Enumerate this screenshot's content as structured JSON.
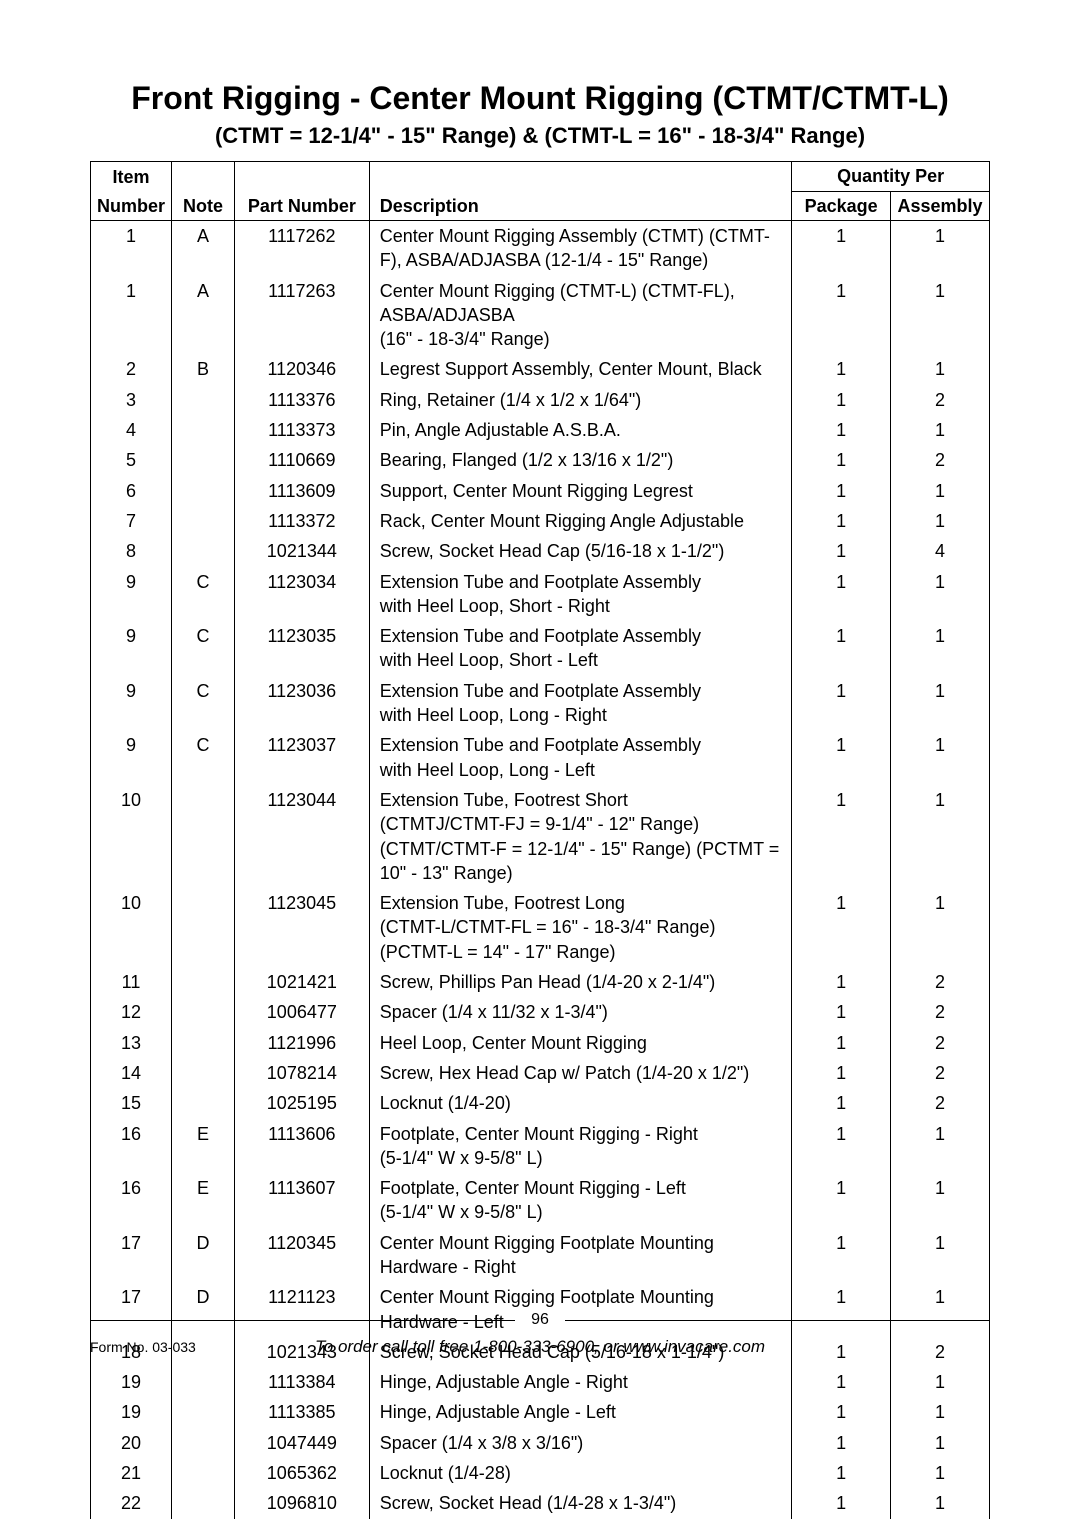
{
  "title": "Front Rigging - Center Mount Rigging (CTMT/CTMT-L)",
  "subtitle": "(CTMT = 12-1/4\" - 15\" Range) & (CTMT-L = 16\" - 18-3/4\" Range)",
  "columns": {
    "item_top": "Item",
    "item": "Number",
    "note": "Note",
    "part": "Part Number",
    "desc": "Description",
    "qty_top": "Quantity Per",
    "pkg": "Package",
    "asm": "Assembly"
  },
  "rows": [
    {
      "item": "1",
      "note": "A",
      "part": "1117262",
      "desc": "Center Mount Rigging Assembly (CTMT) (CTMT-F), ASBA/ADJASBA (12-1/4 - 15\" Range)",
      "pkg": "1",
      "asm": "1"
    },
    {
      "item": "1",
      "note": "A",
      "part": "1117263",
      "desc": "Center Mount Rigging (CTMT-L) (CTMT-FL), ASBA/ADJASBA\n(16\" - 18-3/4\" Range)",
      "pkg": "1",
      "asm": "1"
    },
    {
      "item": "2",
      "note": "B",
      "part": "1120346",
      "desc": "Legrest Support Assembly,  Center Mount, Black",
      "pkg": "1",
      "asm": "1"
    },
    {
      "item": "3",
      "note": "",
      "part": "1113376",
      "desc": "Ring, Retainer (1/4 x 1/2 x 1/64\")",
      "pkg": "1",
      "asm": "2"
    },
    {
      "item": "4",
      "note": "",
      "part": "1113373",
      "desc": "Pin, Angle Adjustable A.S.B.A.",
      "pkg": "1",
      "asm": "1"
    },
    {
      "item": "5",
      "note": "",
      "part": "1110669",
      "desc": "Bearing, Flanged (1/2 x 13/16 x 1/2\")",
      "pkg": "1",
      "asm": "2"
    },
    {
      "item": "6",
      "note": "",
      "part": "1113609",
      "desc": "Support, Center Mount Rigging Legrest",
      "pkg": "1",
      "asm": "1"
    },
    {
      "item": "7",
      "note": "",
      "part": "1113372",
      "desc": "Rack, Center Mount Rigging Angle Adjustable",
      "pkg": "1",
      "asm": "1"
    },
    {
      "item": "8",
      "note": "",
      "part": "1021344",
      "desc": "Screw, Socket Head Cap (5/16-18 x 1-1/2\")",
      "pkg": "1",
      "asm": "4"
    },
    {
      "item": "9",
      "note": "C",
      "part": "1123034",
      "desc": "Extension Tube and Footplate Assembly\nwith Heel Loop, Short - Right",
      "pkg": "1",
      "asm": "1"
    },
    {
      "item": "9",
      "note": "C",
      "part": "1123035",
      "desc": "Extension Tube and Footplate Assembly\nwith Heel Loop, Short - Left",
      "pkg": "1",
      "asm": "1"
    },
    {
      "item": "9",
      "note": "C",
      "part": "1123036",
      "desc": "Extension Tube and Footplate Assembly\nwith Heel Loop, Long - Right",
      "pkg": "1",
      "asm": "1"
    },
    {
      "item": "9",
      "note": "C",
      "part": "1123037",
      "desc": "Extension Tube and Footplate Assembly\nwith Heel Loop, Long - Left",
      "pkg": "1",
      "asm": "1"
    },
    {
      "item": "10",
      "note": "",
      "part": "1123044",
      "desc": "Extension Tube, Footrest Short\n(CTMTJ/CTMT-FJ = 9-1/4\" - 12\" Range)\n(CTMT/CTMT-F = 12-1/4\" - 15\" Range) (PCTMT = 10\" - 13\" Range)",
      "pkg": "1",
      "asm": "1"
    },
    {
      "item": "10",
      "note": "",
      "part": "1123045",
      "desc": "Extension Tube, Footrest Long\n(CTMT-L/CTMT-FL = 16\" - 18-3/4\" Range)\n(PCTMT-L = 14\" - 17\" Range)",
      "pkg": "1",
      "asm": "1"
    },
    {
      "item": "11",
      "note": "",
      "part": "1021421",
      "desc": "Screw, Phillips Pan Head (1/4-20 x 2-1/4\")",
      "pkg": "1",
      "asm": "2"
    },
    {
      "item": "12",
      "note": "",
      "part": "1006477",
      "desc": "Spacer (1/4 x 11/32 x 1-3/4\")",
      "pkg": "1",
      "asm": "2"
    },
    {
      "item": "13",
      "note": "",
      "part": "1121996",
      "desc": "Heel Loop, Center Mount Rigging",
      "pkg": "1",
      "asm": "2"
    },
    {
      "item": "14",
      "note": "",
      "part": "1078214",
      "desc": "Screw, Hex Head Cap w/ Patch (1/4-20 x 1/2\")",
      "pkg": "1",
      "asm": "2"
    },
    {
      "item": "15",
      "note": "",
      "part": "1025195",
      "desc": "Locknut (1/4-20)",
      "pkg": "1",
      "asm": "2"
    },
    {
      "item": "16",
      "note": "E",
      "part": "1113606",
      "desc": "Footplate, Center Mount Rigging - Right\n(5-1/4\" W x 9-5/8\" L)",
      "pkg": "1",
      "asm": "1"
    },
    {
      "item": "16",
      "note": "E",
      "part": "1113607",
      "desc": "Footplate, Center Mount Rigging - Left\n(5-1/4\" W x 9-5/8\" L)",
      "pkg": "1",
      "asm": "1"
    },
    {
      "item": "17",
      "note": "D",
      "part": "1120345",
      "desc": "Center Mount Rigging Footplate Mounting Hardware - Right",
      "pkg": "1",
      "asm": "1"
    },
    {
      "item": "17",
      "note": "D",
      "part": "1121123",
      "desc": "Center Mount Rigging Footplate Mounting Hardware - Left",
      "pkg": "1",
      "asm": "1"
    },
    {
      "item": "18",
      "note": "",
      "part": "1021343",
      "desc": "Screw, Socket Head Cap (5/16-18 x 1-1/4\")",
      "pkg": "1",
      "asm": "2"
    },
    {
      "item": "19",
      "note": "",
      "part": "1113384",
      "desc": "Hinge, Adjustable Angle - Right",
      "pkg": "1",
      "asm": "1"
    },
    {
      "item": "19",
      "note": "",
      "part": "1113385",
      "desc": "Hinge, Adjustable Angle - Left",
      "pkg": "1",
      "asm": "1"
    },
    {
      "item": "20",
      "note": "",
      "part": "1047449",
      "desc": "Spacer (1/4 x 3/8 x 3/16\")",
      "pkg": "1",
      "asm": "1"
    },
    {
      "item": "21",
      "note": "",
      "part": "1065362",
      "desc": "Locknut (1/4-28)",
      "pkg": "1",
      "asm": "1"
    },
    {
      "item": "22",
      "note": "",
      "part": "1096810",
      "desc": "Screw, Socket Head (1/4-28 x 1-3/4\")",
      "pkg": "1",
      "asm": "1"
    }
  ],
  "footer": {
    "page": "96",
    "form": "Form No. 03-033",
    "order": "To order call toll free 1-800-333-6900, or www.invacare.com"
  }
}
